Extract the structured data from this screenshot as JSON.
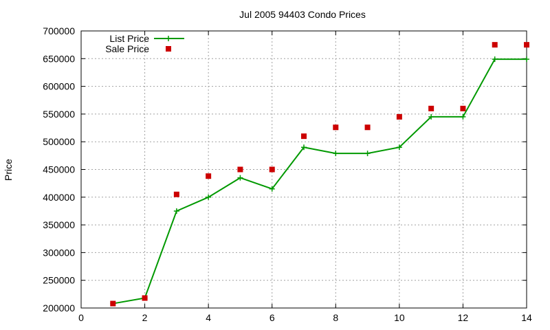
{
  "chart_data": {
    "type": "line",
    "title": "Jul 2005 94403 Condo Prices",
    "xlabel": "",
    "ylabel": "Price",
    "xlim": [
      0,
      14
    ],
    "ylim": [
      200000,
      700000
    ],
    "x_ticks": [
      "0",
      "2",
      "4",
      "6",
      "8",
      "10",
      "12",
      "14"
    ],
    "y_ticks": [
      "200000",
      "250000",
      "300000",
      "350000",
      "400000",
      "450000",
      "500000",
      "550000",
      "600000",
      "650000",
      "700000"
    ],
    "grid": true,
    "legend_position": "top-left",
    "series": [
      {
        "name": "List Price",
        "style": "line-with-plus-markers",
        "color": "#009900",
        "x": [
          1,
          2,
          3,
          4,
          5,
          6,
          7,
          8,
          9,
          10,
          11,
          12,
          13,
          14
        ],
        "y": [
          208000,
          218000,
          375000,
          400000,
          435000,
          415000,
          490000,
          479000,
          479000,
          490000,
          545000,
          545000,
          649000,
          649000
        ]
      },
      {
        "name": "Sale Price",
        "style": "square-markers",
        "color": "#cc0000",
        "x": [
          1,
          2,
          3,
          4,
          5,
          6,
          7,
          8,
          9,
          10,
          11,
          12,
          13,
          14
        ],
        "y": [
          208000,
          218000,
          405000,
          438000,
          450000,
          450000,
          510000,
          526000,
          526000,
          545000,
          560000,
          560000,
          675000,
          675000
        ]
      }
    ]
  }
}
